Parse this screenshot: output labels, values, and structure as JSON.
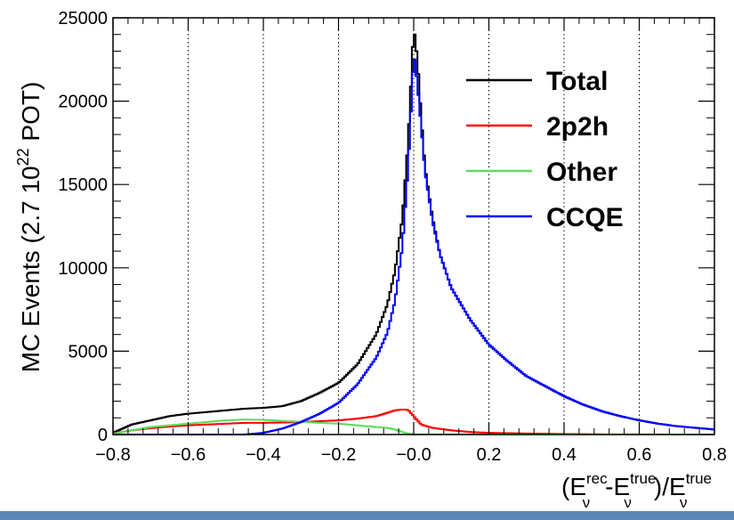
{
  "chart_data": {
    "type": "line",
    "title": "",
    "xlabel_parts": {
      "open": "(E",
      "nu1": "ν",
      "rec": "rec",
      "minus": "-E",
      "nu2": "ν",
      "true1": "true",
      "close": ")/E",
      "nu3": "ν",
      "true2": "true"
    },
    "ylabel_parts": {
      "prefix": "MC Events (2.7 10",
      "exp": "22",
      "suffix": " POT)"
    },
    "xlim": [
      -0.8,
      0.8
    ],
    "ylim": [
      0,
      25000
    ],
    "x_ticks": [
      "−0.8",
      "−0.6",
      "−0.4",
      "−0.2",
      "−0.0",
      "0.2",
      "0.4",
      "0.6",
      "0.8"
    ],
    "x_tick_values": [
      -0.8,
      -0.6,
      -0.4,
      -0.2,
      0.0,
      0.2,
      0.4,
      0.6,
      0.8
    ],
    "y_ticks": [
      "0",
      "5000",
      "10000",
      "15000",
      "20000",
      "25000"
    ],
    "y_tick_values": [
      0,
      5000,
      10000,
      15000,
      20000,
      25000
    ],
    "grid": "vertical dotted",
    "legend_position": "top-right",
    "series": [
      {
        "name": "Total",
        "color": "#000000",
        "points": [
          [
            -0.8,
            100
          ],
          [
            -0.75,
            600
          ],
          [
            -0.7,
            850
          ],
          [
            -0.65,
            1100
          ],
          [
            -0.6,
            1250
          ],
          [
            -0.55,
            1350
          ],
          [
            -0.5,
            1450
          ],
          [
            -0.45,
            1550
          ],
          [
            -0.4,
            1600
          ],
          [
            -0.35,
            1700
          ],
          [
            -0.3,
            2000
          ],
          [
            -0.25,
            2500
          ],
          [
            -0.2,
            3100
          ],
          [
            -0.15,
            4200
          ],
          [
            -0.1,
            6000
          ],
          [
            -0.07,
            7800
          ],
          [
            -0.05,
            9800
          ],
          [
            -0.03,
            13000
          ],
          [
            -0.015,
            17500
          ],
          [
            -0.005,
            22000
          ],
          [
            0.0,
            24500
          ],
          [
            0.01,
            22500
          ],
          [
            0.02,
            19000
          ],
          [
            0.03,
            16000
          ],
          [
            0.05,
            13000
          ],
          [
            0.07,
            10800
          ],
          [
            0.1,
            8800
          ],
          [
            0.15,
            6900
          ],
          [
            0.2,
            5400
          ],
          [
            0.25,
            4400
          ],
          [
            0.3,
            3500
          ],
          [
            0.35,
            2900
          ],
          [
            0.4,
            2300
          ],
          [
            0.45,
            1800
          ],
          [
            0.5,
            1400
          ],
          [
            0.55,
            1100
          ],
          [
            0.6,
            850
          ],
          [
            0.65,
            650
          ],
          [
            0.7,
            500
          ],
          [
            0.75,
            400
          ],
          [
            0.8,
            300
          ]
        ]
      },
      {
        "name": "2p2h",
        "color": "#ff0000",
        "points": [
          [
            -0.8,
            50
          ],
          [
            -0.75,
            250
          ],
          [
            -0.7,
            380
          ],
          [
            -0.65,
            480
          ],
          [
            -0.6,
            550
          ],
          [
            -0.55,
            600
          ],
          [
            -0.5,
            650
          ],
          [
            -0.45,
            700
          ],
          [
            -0.4,
            700
          ],
          [
            -0.35,
            720
          ],
          [
            -0.3,
            750
          ],
          [
            -0.25,
            800
          ],
          [
            -0.2,
            850
          ],
          [
            -0.15,
            950
          ],
          [
            -0.1,
            1100
          ],
          [
            -0.07,
            1300
          ],
          [
            -0.05,
            1450
          ],
          [
            -0.03,
            1500
          ],
          [
            -0.015,
            1480
          ],
          [
            0.0,
            1100
          ],
          [
            0.02,
            600
          ],
          [
            0.05,
            400
          ],
          [
            0.1,
            250
          ],
          [
            0.15,
            150
          ],
          [
            0.2,
            100
          ],
          [
            0.3,
            60
          ],
          [
            0.4,
            30
          ],
          [
            0.5,
            10
          ],
          [
            0.6,
            5
          ],
          [
            0.8,
            0
          ]
        ]
      },
      {
        "name": "Other",
        "color": "#5fdc5f",
        "points": [
          [
            -0.8,
            30
          ],
          [
            -0.75,
            250
          ],
          [
            -0.7,
            450
          ],
          [
            -0.65,
            550
          ],
          [
            -0.6,
            650
          ],
          [
            -0.55,
            750
          ],
          [
            -0.5,
            850
          ],
          [
            -0.45,
            900
          ],
          [
            -0.4,
            880
          ],
          [
            -0.35,
            820
          ],
          [
            -0.3,
            760
          ],
          [
            -0.25,
            700
          ],
          [
            -0.2,
            650
          ],
          [
            -0.15,
            550
          ],
          [
            -0.1,
            450
          ],
          [
            -0.07,
            400
          ],
          [
            -0.05,
            300
          ],
          [
            -0.03,
            150
          ],
          [
            -0.015,
            50
          ],
          [
            0.0,
            10
          ],
          [
            0.1,
            5
          ],
          [
            0.2,
            3
          ],
          [
            0.4,
            2
          ],
          [
            0.8,
            0
          ]
        ]
      },
      {
        "name": "CCQE",
        "color": "#0000ff",
        "points": [
          [
            -0.8,
            0
          ],
          [
            -0.6,
            0
          ],
          [
            -0.45,
            0
          ],
          [
            -0.4,
            100
          ],
          [
            -0.35,
            350
          ],
          [
            -0.3,
            750
          ],
          [
            -0.25,
            1250
          ],
          [
            -0.2,
            1900
          ],
          [
            -0.15,
            3000
          ],
          [
            -0.1,
            4600
          ],
          [
            -0.07,
            6100
          ],
          [
            -0.05,
            8000
          ],
          [
            -0.03,
            11300
          ],
          [
            -0.015,
            16000
          ],
          [
            -0.005,
            20500
          ],
          [
            0.0,
            23000
          ],
          [
            0.01,
            21000
          ],
          [
            0.02,
            18500
          ],
          [
            0.03,
            15800
          ],
          [
            0.05,
            12800
          ],
          [
            0.07,
            10800
          ],
          [
            0.1,
            8800
          ],
          [
            0.15,
            6900
          ],
          [
            0.2,
            5400
          ],
          [
            0.25,
            4400
          ],
          [
            0.3,
            3500
          ],
          [
            0.35,
            2900
          ],
          [
            0.4,
            2300
          ],
          [
            0.45,
            1800
          ],
          [
            0.5,
            1400
          ],
          [
            0.55,
            1100
          ],
          [
            0.6,
            850
          ],
          [
            0.65,
            650
          ],
          [
            0.7,
            500
          ],
          [
            0.75,
            400
          ],
          [
            0.8,
            300
          ]
        ]
      }
    ]
  }
}
